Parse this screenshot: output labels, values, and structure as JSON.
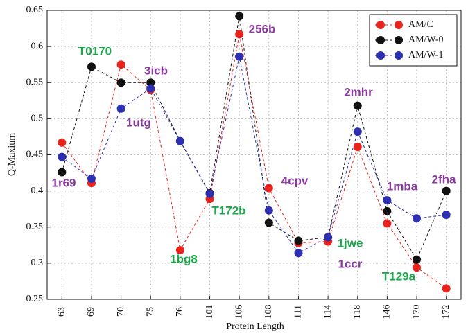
{
  "chart_data": {
    "type": "line",
    "xlabel": "Protein Length",
    "ylabel": "Q-Maxium",
    "categories": [
      "63",
      "69",
      "70",
      "75",
      "76",
      "101",
      "106",
      "108",
      "111",
      "114",
      "118",
      "146",
      "170",
      "172"
    ],
    "series": [
      {
        "name": "AM/C",
        "color": "#e8231c",
        "values": [
          0.467,
          0.411,
          0.575,
          0.54,
          0.318,
          0.389,
          0.617,
          0.404,
          0.328,
          0.33,
          0.461,
          0.355,
          0.294,
          0.265
        ]
      },
      {
        "name": "AM/W-0",
        "color": "#111111",
        "values": [
          0.426,
          0.572,
          0.55,
          0.55,
          0.469,
          0.397,
          0.642,
          0.356,
          0.331,
          0.336,
          0.518,
          0.372,
          0.305,
          0.4
        ]
      },
      {
        "name": "AM/W-1",
        "color": "#2b2fb0",
        "values": [
          0.447,
          0.417,
          0.514,
          0.542,
          0.469,
          0.396,
          0.586,
          0.373,
          0.314,
          0.336,
          0.482,
          0.387,
          0.362,
          0.367
        ]
      }
    ],
    "ylim": [
      0.25,
      0.65
    ],
    "yticks": [
      0.25,
      0.3,
      0.35,
      0.4,
      0.45,
      0.5,
      0.55,
      0.6,
      0.65
    ],
    "grid": true,
    "legend": "upper right",
    "annotations": [
      {
        "text": "1r69",
        "color": "#8b3aa0"
      },
      {
        "text": "T0170",
        "color": "#1aa84a"
      },
      {
        "text": "3icb",
        "color": "#8b3aa0"
      },
      {
        "text": "1utg",
        "color": "#8b3aa0"
      },
      {
        "text": "1bg8",
        "color": "#1aa84a"
      },
      {
        "text": "T172b",
        "color": "#1aa84a"
      },
      {
        "text": "256b",
        "color": "#8b3aa0"
      },
      {
        "text": "4cpv",
        "color": "#8b3aa0"
      },
      {
        "text": "1ccr",
        "color": "#8b3aa0"
      },
      {
        "text": "1jwe",
        "color": "#1aa84a"
      },
      {
        "text": "2mhr",
        "color": "#8b3aa0"
      },
      {
        "text": "1mba",
        "color": "#8b3aa0"
      },
      {
        "text": "2fha",
        "color": "#8b3aa0"
      },
      {
        "text": "T129a",
        "color": "#1aa84a"
      }
    ]
  }
}
